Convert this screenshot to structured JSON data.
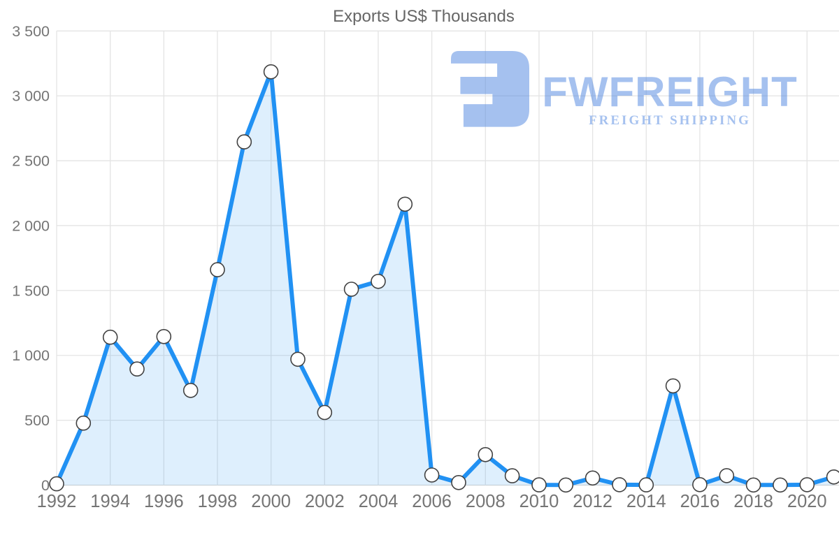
{
  "title": "Exports US$ Thousands",
  "watermark": {
    "brand": "FWFREIGHT",
    "tagline": "FREIGHT SHIPPING",
    "color": "#5c8fe2",
    "opacity": 0.55
  },
  "colors": {
    "line": "#2191f3",
    "area_fill": "#2196f3",
    "area_fill_opacity": 0.15,
    "marker_fill": "#ffffff",
    "marker_stroke": "#424242",
    "gridline": "#e4e4e4",
    "axis_line": "#d6d6d6",
    "tick_text": "#757575",
    "title_text": "#666666"
  },
  "chart_data": {
    "type": "area",
    "title": "Exports US$ Thousands",
    "xlabel": "",
    "ylabel": "",
    "series_name": "Exports US$ Thousands",
    "x": [
      1992,
      1993,
      1994,
      1995,
      1996,
      1997,
      1998,
      1999,
      2000,
      2001,
      2002,
      2003,
      2004,
      2005,
      2006,
      2007,
      2008,
      2009,
      2010,
      2011,
      2012,
      2013,
      2014,
      2015,
      2016,
      2017,
      2018,
      2019,
      2020,
      2021
    ],
    "values": [
      10,
      478,
      1140,
      895,
      1145,
      730,
      1660,
      2645,
      3185,
      970,
      560,
      1510,
      1570,
      2165,
      78,
      20,
      235,
      72,
      2,
      1,
      55,
      3,
      2,
      765,
      4,
      73,
      1,
      1,
      3,
      63
    ],
    "xlim": [
      1992,
      2021
    ],
    "ylim": [
      0,
      3500
    ],
    "x_ticks": [
      1992,
      1994,
      1996,
      1998,
      2000,
      2002,
      2004,
      2006,
      2008,
      2010,
      2012,
      2014,
      2016,
      2018,
      2020
    ],
    "y_ticks": [
      0,
      500,
      1000,
      1500,
      2000,
      2500,
      3000,
      3500
    ],
    "y_tick_labels": [
      "0",
      "500",
      "1 000",
      "1 500",
      "2 000",
      "2 500",
      "3 000",
      "3 500"
    ],
    "grid": true,
    "legend": "none",
    "marker": "white-circle"
  }
}
